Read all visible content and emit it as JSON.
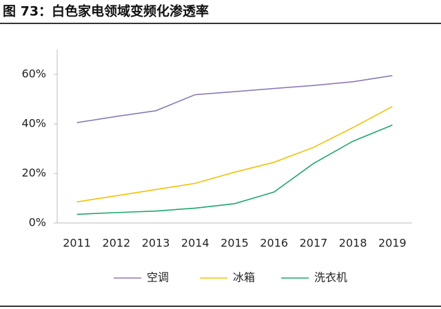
{
  "chart_data": {
    "type": "line",
    "title": "图 73：白色家电领域变频化渗透率",
    "categories": [
      "2011",
      "2012",
      "2013",
      "2014",
      "2015",
      "2016",
      "2017",
      "2018",
      "2019"
    ],
    "series": [
      {
        "name": "空调",
        "color": "#8a7ab8",
        "values": [
          40.5,
          43,
          45.3,
          51.8,
          53,
          54.3,
          55.5,
          57,
          59.5
        ]
      },
      {
        "name": "冰箱",
        "color": "#f5c000",
        "values": [
          8.5,
          11,
          13.5,
          16,
          20.5,
          24.5,
          30.5,
          38.5,
          47
        ]
      },
      {
        "name": "洗衣机",
        "color": "#1aa86a",
        "values": [
          3.5,
          4.2,
          4.8,
          6,
          7.8,
          12.5,
          24,
          33,
          39.5
        ]
      }
    ],
    "ylim": [
      0,
      70
    ],
    "yticks": [
      {
        "value": 0,
        "label": "0%"
      },
      {
        "value": 20,
        "label": "20%"
      },
      {
        "value": 40,
        "label": "40%"
      },
      {
        "value": 60,
        "label": "60%"
      }
    ],
    "legend": "bottom"
  }
}
